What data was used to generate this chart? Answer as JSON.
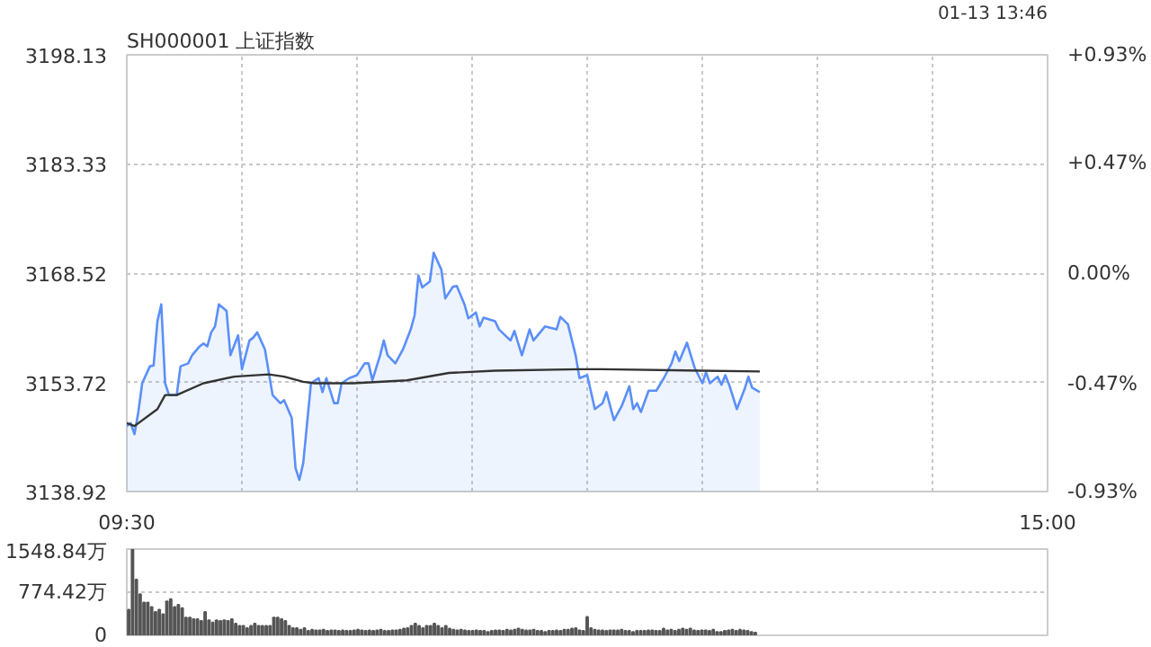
{
  "chart_data": [
    {
      "type": "line",
      "title": "SH000001 上证指数",
      "annotations": [
        "01-13 13:46"
      ],
      "grid": true,
      "xlim": [
        9.5,
        15
      ],
      "xticks": [
        {
          "value": 9.5,
          "label": "09:30"
        },
        {
          "value": 10.1875,
          "label": null
        },
        {
          "value": 10.875,
          "label": null
        },
        {
          "value": 11.5625,
          "label": null
        },
        {
          "value": 12.25,
          "label": null
        },
        {
          "value": 12.9375,
          "label": null
        },
        {
          "value": 13.625,
          "label": null
        },
        {
          "value": 14.3125,
          "label": null
        },
        {
          "value": 15,
          "label": "15:00"
        }
      ],
      "ylim": [
        3138.92,
        3198.13
      ],
      "yticks": [
        3138.92,
        3153.72,
        3168.52,
        3183.33,
        3198.13
      ],
      "y2lim": [
        -0.93,
        0.93
      ],
      "y2ticks": [
        {
          "value": -0.93,
          "label": "-0.93%"
        },
        {
          "value": -0.47,
          "label": "-0.47%"
        },
        {
          "value": 0,
          "label": "0.00%"
        },
        {
          "value": 0.47,
          "label": "+0.47%"
        },
        {
          "value": 0.93,
          "label": "+0.93%"
        }
      ],
      "series": [
        {
          "type": "area",
          "color": "#5b8ff9",
          "x": [
            9.5,
            9.523,
            9.546,
            9.569,
            9.592,
            9.638,
            9.66,
            9.683,
            9.706,
            9.729,
            9.752,
            9.798,
            9.821,
            9.867,
            9.89,
            9.935,
            9.958,
            9.981,
            10.004,
            10.027,
            10.05,
            10.096,
            10.119,
            10.165,
            10.188,
            10.233,
            10.256,
            10.279,
            10.325,
            10.371,
            10.417,
            10.44,
            10.485,
            10.508,
            10.531,
            10.554,
            10.6,
            10.646,
            10.669,
            10.692,
            10.738,
            10.76,
            10.783,
            10.829,
            10.875,
            10.921,
            10.944,
            10.967,
            11.013,
            11.035,
            11.058,
            11.104,
            11.15,
            11.196,
            11.219,
            11.242,
            11.265,
            11.31,
            11.333,
            11.379,
            11.402,
            11.448,
            11.471,
            11.517,
            11.54,
            11.585,
            11.608,
            11.631,
            11.7,
            11.723,
            11.792,
            11.815,
            11.86,
            11.906,
            11.929,
            11.998,
            12.067,
            12.09,
            12.135,
            12.181,
            12.204,
            12.25,
            12.296,
            12.342,
            12.365,
            12.41,
            12.456,
            12.502,
            12.525,
            12.548,
            12.571,
            12.617,
            12.663,
            12.708,
            12.754,
            12.777,
            12.8,
            12.846,
            12.892,
            12.938,
            12.96,
            12.983,
            13.029,
            13.052,
            13.075,
            13.098,
            13.144,
            13.19,
            13.213,
            13.235,
            13.281
          ],
          "values": [
            3147.8,
            3148.2,
            3146.7,
            3149.7,
            3153.6,
            3155.9,
            3156.0,
            3162.0,
            3164.3,
            3153.6,
            3152.0,
            3152.0,
            3155.9,
            3156.3,
            3157.4,
            3158.6,
            3159.0,
            3158.6,
            3160.5,
            3161.3,
            3164.3,
            3163.4,
            3157.4,
            3160.1,
            3155.5,
            3159.4,
            3159.8,
            3160.5,
            3158.2,
            3152.0,
            3150.9,
            3151.3,
            3148.9,
            3142.1,
            3140.5,
            3142.8,
            3153.6,
            3154.3,
            3152.4,
            3154.3,
            3150.9,
            3150.9,
            3153.6,
            3154.3,
            3154.7,
            3156.3,
            3156.3,
            3154.0,
            3157.4,
            3159.4,
            3157.4,
            3156.3,
            3158.2,
            3160.9,
            3162.8,
            3168.2,
            3166.6,
            3167.4,
            3171.3,
            3169.0,
            3165.1,
            3166.7,
            3166.8,
            3164.3,
            3162.4,
            3163.2,
            3161.3,
            3162.5,
            3162.0,
            3160.9,
            3159.4,
            3160.7,
            3157.4,
            3160.9,
            3159.4,
            3161.3,
            3160.9,
            3162.6,
            3161.6,
            3157.4,
            3154.3,
            3154.7,
            3150.1,
            3150.9,
            3152.4,
            3148.6,
            3150.5,
            3153.2,
            3150.1,
            3150.9,
            3149.7,
            3152.6,
            3152.6,
            3154.3,
            3156.3,
            3157.9,
            3156.6,
            3159.1,
            3155.7,
            3153.6,
            3155.1,
            3153.6,
            3154.5,
            3153.4,
            3154.7,
            3153.4,
            3150.1,
            3152.8,
            3154.5,
            3153.0,
            3152.4
          ]
        },
        {
          "type": "line",
          "color": "#333333",
          "x": [
            9.5,
            9.546,
            9.683,
            9.729,
            9.798,
            9.958,
            10.142,
            10.348,
            10.44,
            10.554,
            10.623,
            10.852,
            11.173,
            11.425,
            11.7,
            12.204,
            12.342,
            13.281
          ],
          "values": [
            3148.2,
            3147.8,
            3150.1,
            3152.0,
            3152.0,
            3153.6,
            3154.5,
            3154.8,
            3154.5,
            3153.8,
            3153.6,
            3153.6,
            3154.0,
            3155.0,
            3155.3,
            3155.5,
            3155.5,
            3155.2
          ]
        }
      ]
    },
    {
      "type": "bar",
      "color": "#555555",
      "grid": true,
      "tick_labels": "y",
      "ylim": [
        0,
        1548.84
      ],
      "yticks": [
        0,
        {
          "value": 774.42,
          "label": "774.42万"
        },
        {
          "value": 1548.84,
          "label": "1548.84万"
        }
      ],
      "categories": [
        null,
        null,
        null,
        null,
        null,
        null,
        null,
        null,
        null,
        null,
        null,
        null,
        null,
        null,
        null,
        null,
        null,
        null,
        null,
        null,
        null,
        null,
        null,
        null,
        null,
        null,
        null,
        null,
        null,
        null,
        null,
        null,
        null,
        null,
        null,
        null,
        null,
        null,
        null,
        null,
        null,
        null,
        null,
        null,
        null,
        null,
        null,
        null,
        null,
        null,
        null,
        null,
        null,
        null,
        null,
        null,
        null,
        null,
        null,
        null,
        null,
        null,
        null,
        null,
        null,
        null,
        null,
        null,
        null,
        null,
        null,
        null,
        null,
        null,
        null,
        null,
        null,
        null,
        null,
        null,
        null,
        null,
        null,
        null,
        null,
        null,
        null,
        null,
        null,
        null,
        null,
        null,
        null,
        null,
        null,
        null,
        null,
        null,
        null,
        null,
        null,
        null,
        null,
        null,
        null,
        null,
        null,
        null,
        null,
        null,
        null,
        null,
        null,
        null,
        null,
        null,
        null,
        null,
        null,
        null,
        null,
        null,
        null,
        null,
        null,
        null,
        null,
        null,
        null,
        null,
        null,
        null,
        null,
        null,
        null,
        null,
        null,
        null,
        null,
        null,
        null,
        null,
        null,
        null,
        null,
        null,
        null,
        null,
        null,
        null,
        null,
        null,
        null,
        null,
        null,
        null,
        null,
        null,
        null,
        null,
        null,
        null,
        null,
        null,
        null,
        null,
        null,
        null,
        null,
        null,
        null,
        null,
        null,
        null,
        null,
        null,
        null,
        null,
        null,
        null,
        null,
        null,
        null,
        null,
        null,
        null,
        null,
        null,
        null,
        null,
        null,
        null,
        null,
        null,
        null,
        null,
        null,
        null,
        null,
        null,
        null,
        null,
        null,
        null,
        null,
        null,
        null,
        null,
        null,
        null,
        null,
        null,
        null,
        null,
        null,
        null,
        null,
        null,
        null,
        null,
        null,
        null,
        null,
        null,
        null,
        null,
        null,
        null,
        null,
        null,
        null,
        null,
        null,
        null,
        null,
        null,
        null,
        null,
        null,
        null,
        null
      ],
      "values": [
        460,
        1540,
        1000,
        740,
        590,
        590,
        510,
        420,
        460,
        380,
        610,
        650,
        510,
        550,
        490,
        320,
        320,
        290,
        290,
        260,
        420,
        270,
        230,
        270,
        260,
        270,
        260,
        290,
        210,
        170,
        170,
        130,
        170,
        210,
        170,
        170,
        170,
        170,
        320,
        320,
        290,
        260,
        170,
        130,
        130,
        100,
        130,
        80,
        100,
        90,
        90,
        100,
        80,
        90,
        90,
        80,
        90,
        80,
        80,
        90,
        100,
        90,
        80,
        90,
        80,
        90,
        100,
        80,
        80,
        90,
        90,
        100,
        120,
        130,
        170,
        210,
        170,
        130,
        170,
        170,
        210,
        170,
        130,
        170,
        120,
        100,
        90,
        100,
        90,
        80,
        80,
        90,
        80,
        80,
        60,
        80,
        90,
        90,
        80,
        100,
        90,
        100,
        120,
        100,
        90,
        90,
        100,
        80,
        80,
        60,
        80,
        80,
        90,
        80,
        100,
        100,
        120,
        130,
        90,
        80,
        330,
        130,
        100,
        90,
        90,
        80,
        90,
        90,
        90,
        100,
        80,
        80,
        60,
        80,
        80,
        80,
        90,
        90,
        80,
        80,
        120,
        90,
        100,
        80,
        100,
        120,
        100,
        120,
        90,
        80,
        90,
        90,
        80,
        100,
        60,
        60,
        80,
        90,
        100,
        80,
        100,
        90,
        80,
        60,
        50,
        null,
        null,
        null,
        null,
        null,
        null,
        null,
        null,
        null,
        null,
        null,
        null,
        null,
        null,
        null,
        null,
        null,
        null,
        null,
        null,
        null,
        null,
        null,
        null,
        null,
        null,
        null,
        null,
        null,
        null,
        null,
        null,
        null,
        null,
        null,
        null,
        null,
        null,
        null,
        null,
        null,
        null,
        null,
        null,
        null,
        null,
        null,
        null,
        null,
        null,
        null,
        null,
        null,
        null,
        null,
        null,
        null,
        null,
        null,
        null,
        null,
        null,
        null,
        null,
        null,
        null,
        null,
        null,
        null,
        null,
        null,
        null,
        null,
        null,
        null,
        null
      ]
    }
  ]
}
